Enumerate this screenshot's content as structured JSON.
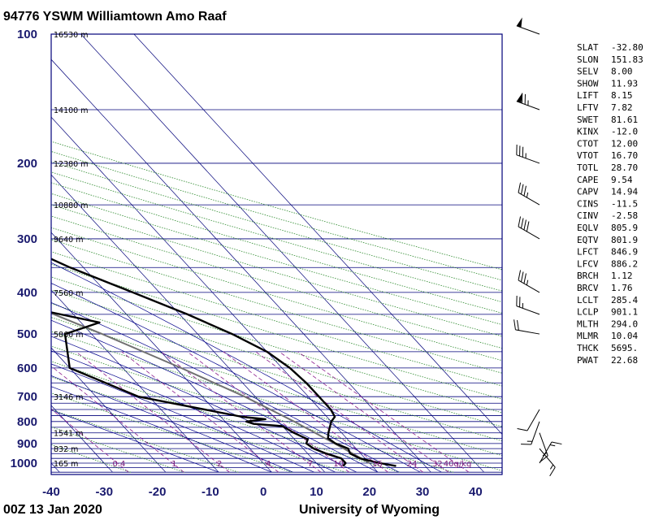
{
  "title": "94776 YSWM Williamtown Amo Raaf",
  "footer_left": "00Z 13 Jan 2020",
  "footer_right": "University of Wyoming",
  "chart_data": {
    "type": "skew-t log-p sounding",
    "pressure_levels": [
      100,
      200,
      300,
      400,
      500,
      600,
      700,
      800,
      900,
      1000
    ],
    "pressure_range": [
      100,
      1050
    ],
    "temperature_ticks": [
      -40,
      -30,
      -20,
      -10,
      0,
      10,
      20,
      30,
      40
    ],
    "temperature_range": [
      -40,
      45
    ],
    "heights": [
      {
        "p": 100,
        "label": "16530 m"
      },
      {
        "p": 150,
        "label": "14100 m"
      },
      {
        "p": 200,
        "label": "12380 m"
      },
      {
        "p": 250,
        "label": "10880 m"
      },
      {
        "p": 300,
        "label": "9640 m"
      },
      {
        "p": 400,
        "label": "7560 m"
      },
      {
        "p": 500,
        "label": "5860 m"
      },
      {
        "p": 700,
        "label": "3146 m"
      },
      {
        "p": 850,
        "label": "1541 m"
      },
      {
        "p": 925,
        "label": "832 m"
      },
      {
        "p": 1000,
        "label": "165 m"
      }
    ],
    "mixing_ratio_labels": [
      "0.4",
      "1",
      "2",
      "4",
      "7",
      "10",
      "16",
      "24",
      "32",
      "40g/kg"
    ],
    "temperature_profile": [
      {
        "p": 1016,
        "t": 24.5
      },
      {
        "p": 1000,
        "t": 22.0
      },
      {
        "p": 975,
        "t": 19.0
      },
      {
        "p": 950,
        "t": 18.0
      },
      {
        "p": 925,
        "t": 18.5
      },
      {
        "p": 900,
        "t": 17.0
      },
      {
        "p": 875,
        "t": 16.5
      },
      {
        "p": 850,
        "t": 17.5
      },
      {
        "p": 800,
        "t": 20.0
      },
      {
        "p": 780,
        "t": 21.5
      },
      {
        "p": 750,
        "t": 22.0
      },
      {
        "p": 700,
        "t": 22.0
      },
      {
        "p": 650,
        "t": 22.0
      },
      {
        "p": 600,
        "t": 21.5
      },
      {
        "p": 550,
        "t": 20.0
      },
      {
        "p": 500,
        "t": 16.5
      },
      {
        "p": 450,
        "t": 11.5
      },
      {
        "p": 400,
        "t": 5.0
      },
      {
        "p": 350,
        "t": -2.5
      },
      {
        "p": 300,
        "t": -9.5
      },
      {
        "p": 270,
        "t": -14.0
      },
      {
        "p": 250,
        "t": -17.5
      },
      {
        "p": 200,
        "t": -26.0
      },
      {
        "p": 175,
        "t": -30.5
      },
      {
        "p": 150,
        "t": -35.0
      },
      {
        "p": 135,
        "t": -38.5
      },
      {
        "p": 120,
        "t": -40.0
      },
      {
        "p": 110,
        "t": -41.5
      },
      {
        "p": 100,
        "t": -44.0
      }
    ],
    "dewpoint_profile": [
      {
        "p": 1016,
        "t": 14.5
      },
      {
        "p": 1000,
        "t": 15.5
      },
      {
        "p": 975,
        "t": 15.5
      },
      {
        "p": 950,
        "t": 13.5
      },
      {
        "p": 925,
        "t": 12.0
      },
      {
        "p": 900,
        "t": 11.5
      },
      {
        "p": 880,
        "t": 12.5
      },
      {
        "p": 850,
        "t": 11.0
      },
      {
        "p": 820,
        "t": 10.0
      },
      {
        "p": 810,
        "t": 5.0
      },
      {
        "p": 800,
        "t": 4.0
      },
      {
        "p": 790,
        "t": 8.0
      },
      {
        "p": 780,
        "t": 4.0
      },
      {
        "p": 700,
        "t": -12.0
      },
      {
        "p": 600,
        "t": -20.0
      },
      {
        "p": 500,
        "t": -15.0
      },
      {
        "p": 470,
        "t": -6.5
      },
      {
        "p": 440,
        "t": -15.5
      },
      {
        "p": 400,
        "t": -15.0
      },
      {
        "p": 300,
        "t": -18.0
      },
      {
        "p": 280,
        "t": -26.0
      },
      {
        "p": 250,
        "t": -28.0
      },
      {
        "p": 200,
        "t": -36.0
      },
      {
        "p": 180,
        "t": -38.0
      },
      {
        "p": 165,
        "t": -33.0
      },
      {
        "p": 150,
        "t": -39.0
      },
      {
        "p": 135,
        "t": -39.5
      },
      {
        "p": 130,
        "t": -52.0
      },
      {
        "p": 120,
        "t": -52.0
      },
      {
        "p": 110,
        "t": -54.0
      },
      {
        "p": 100,
        "t": -59.0
      }
    ],
    "parcel_profile": [
      {
        "p": 1000,
        "t": 20.0
      },
      {
        "p": 950,
        "t": 18.5
      },
      {
        "p": 900,
        "t": 16.8
      },
      {
        "p": 850,
        "t": 15.0
      },
      {
        "p": 800,
        "t": 13.0
      },
      {
        "p": 700,
        "t": 8.0
      },
      {
        "p": 600,
        "t": 1.0
      },
      {
        "p": 500,
        "t": -8.0
      },
      {
        "p": 400,
        "t": -20.0
      },
      {
        "p": 300,
        "t": -36.5
      },
      {
        "p": 250,
        "t": -47.5
      },
      {
        "p": 200,
        "t": -60.0
      },
      {
        "p": 150,
        "t": -78.0
      },
      {
        "p": 100,
        "t": -105.0
      }
    ],
    "wind_barbs": [
      {
        "p": 1000,
        "dir": 30,
        "spd": 15
      },
      {
        "p": 925,
        "dir": 140,
        "spd": 15
      },
      {
        "p": 850,
        "dir": 160,
        "spd": 15
      },
      {
        "p": 800,
        "dir": 200,
        "spd": 15
      },
      {
        "p": 750,
        "dir": 210,
        "spd": 10
      },
      {
        "p": 500,
        "dir": 280,
        "spd": 20
      },
      {
        "p": 450,
        "dir": 290,
        "spd": 25
      },
      {
        "p": 400,
        "dir": 300,
        "spd": 35
      },
      {
        "p": 300,
        "dir": 300,
        "spd": 40
      },
      {
        "p": 250,
        "dir": 300,
        "spd": 35
      },
      {
        "p": 200,
        "dir": 290,
        "spd": 35
      },
      {
        "p": 150,
        "dir": 290,
        "spd": 75
      },
      {
        "p": 100,
        "dir": 290,
        "spd": 50
      }
    ],
    "indices": [
      {
        "name": "SLAT",
        "value": "-32.80"
      },
      {
        "name": "SLON",
        "value": "151.83"
      },
      {
        "name": "SELV",
        "value": "8.00"
      },
      {
        "name": "SHOW",
        "value": "11.93"
      },
      {
        "name": "LIFT",
        "value": "8.15"
      },
      {
        "name": "LFTV",
        "value": "7.82"
      },
      {
        "name": "SWET",
        "value": "81.61"
      },
      {
        "name": "KINX",
        "value": "-12.0"
      },
      {
        "name": "CTOT",
        "value": "12.00"
      },
      {
        "name": "VTOT",
        "value": "16.70"
      },
      {
        "name": "TOTL",
        "value": "28.70"
      },
      {
        "name": "CAPE",
        "value": "9.54"
      },
      {
        "name": "CAPV",
        "value": "14.94"
      },
      {
        "name": "CINS",
        "value": "-11.5"
      },
      {
        "name": "CINV",
        "value": "-2.58"
      },
      {
        "name": "EQLV",
        "value": "805.9"
      },
      {
        "name": "EQTV",
        "value": "801.9"
      },
      {
        "name": "LFCT",
        "value": "846.9"
      },
      {
        "name": "LFCV",
        "value": "886.2"
      },
      {
        "name": "BRCH",
        "value": "1.12"
      },
      {
        "name": "BRCV",
        "value": "1.76"
      },
      {
        "name": "LCLT",
        "value": "285.4"
      },
      {
        "name": "LCLP",
        "value": "901.1"
      },
      {
        "name": "MLTH",
        "value": "294.0"
      },
      {
        "name": "MLMR",
        "value": "10.04"
      },
      {
        "name": "THCK",
        "value": "5695."
      },
      {
        "name": "PWAT",
        "value": "22.68"
      }
    ],
    "colors": {
      "frame": "#00007a",
      "isobar": "#00007a",
      "isotherm": "#00007a",
      "dry_adiabat": "#2e8b2e",
      "moist_adiabat": "#00008b",
      "mixing_ratio": "#8b1a8b",
      "profile": "#000000",
      "parcel": "#707070",
      "axis_label": "#1a1a6e"
    }
  }
}
